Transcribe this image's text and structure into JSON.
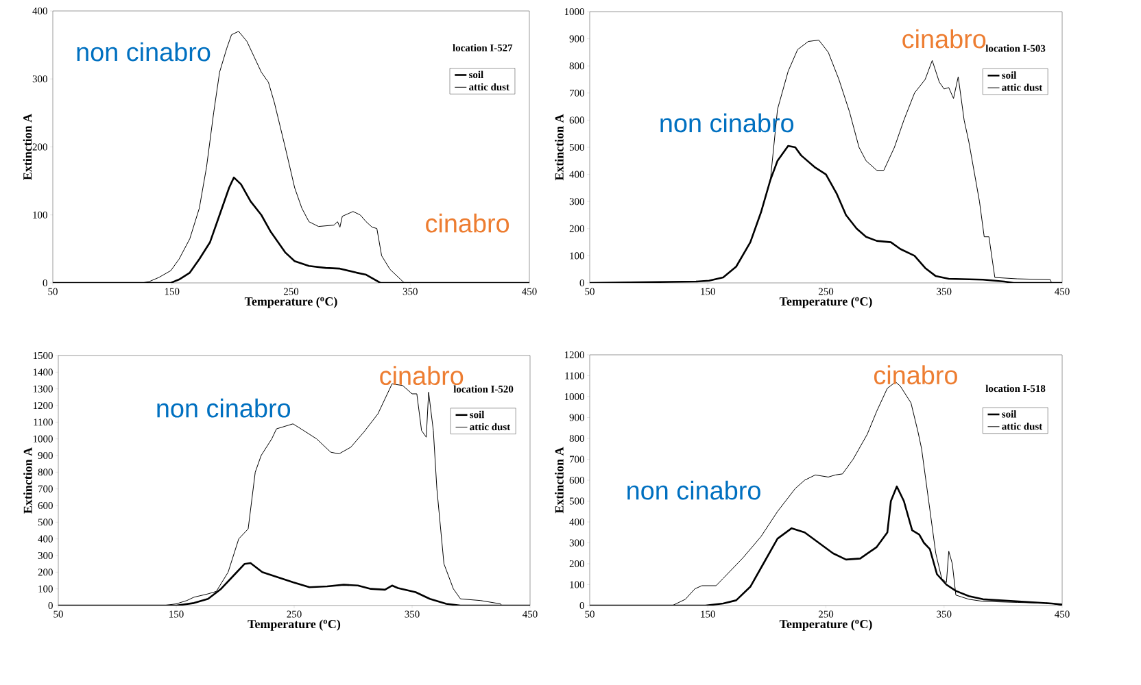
{
  "chart_data": [
    {
      "type": "line",
      "title": "location I-527",
      "xlabel": "Temperature ($^{o}$C)",
      "ylabel": "Extinction A",
      "xlim": [
        50,
        450
      ],
      "xticks": [
        50,
        150,
        250,
        350,
        450
      ],
      "ylim": [
        0,
        400
      ],
      "yticks": [
        0,
        100,
        200,
        300,
        400
      ],
      "legend": "top right",
      "series": [
        {
          "name": "soil",
          "color": "#000000",
          "x": [
            50,
            149,
            156,
            165,
            173,
            182,
            190,
            198,
            202,
            208,
            216,
            225,
            233,
            245,
            253,
            265,
            279,
            291,
            305,
            313,
            325,
            450
          ],
          "values": [
            0,
            0,
            5,
            15,
            35,
            60,
            100,
            140,
            155,
            145,
            120,
            100,
            75,
            45,
            32,
            25,
            22,
            21,
            15,
            12,
            0,
            0
          ]
        },
        {
          "name": "attic dust",
          "color": "#000000",
          "x": [
            50,
            125,
            131,
            139,
            149,
            156,
            165,
            173,
            179,
            185,
            190,
            196,
            200,
            206,
            213,
            225,
            231,
            236,
            245,
            253,
            259,
            265,
            273,
            286,
            289,
            291,
            293,
            302,
            308,
            313,
            318,
            322,
            326,
            333,
            345,
            450
          ],
          "values": [
            0,
            0,
            2,
            8,
            18,
            35,
            65,
            110,
            170,
            250,
            310,
            345,
            365,
            370,
            355,
            310,
            295,
            265,
            200,
            140,
            110,
            90,
            83,
            85,
            90,
            82,
            98,
            105,
            100,
            90,
            82,
            80,
            40,
            20,
            0,
            0
          ]
        }
      ],
      "annotations": [
        "non cinabro",
        "cinabro"
      ]
    },
    {
      "type": "line",
      "title": "location I-503",
      "xlabel": "Temperature ($^{o}$C)",
      "ylabel": "Extinction A",
      "xlim": [
        50,
        450
      ],
      "xticks": [
        50,
        150,
        250,
        350,
        450
      ],
      "ylim": [
        0,
        1000
      ],
      "yticks": [
        0,
        100,
        200,
        300,
        400,
        500,
        600,
        700,
        800,
        900,
        1000
      ],
      "legend": "top right",
      "series": [
        {
          "name": "soil",
          "color": "#000000",
          "x": [
            50,
            140,
            151,
            163,
            174,
            186,
            195,
            203,
            209,
            218,
            224,
            229,
            241,
            250,
            259,
            267,
            276,
            284,
            293,
            305,
            313,
            325,
            334,
            343,
            354,
            383,
            401,
            409,
            450
          ],
          "values": [
            0,
            5,
            8,
            20,
            60,
            150,
            260,
            380,
            450,
            505,
            500,
            470,
            425,
            400,
            330,
            250,
            200,
            170,
            155,
            150,
            125,
            100,
            55,
            25,
            15,
            12,
            5,
            0,
            0
          ]
        },
        {
          "name": "attic dust",
          "color": "#000000",
          "x": [
            50,
            140,
            151,
            163,
            174,
            186,
            195,
            203,
            209,
            218,
            226,
            235,
            244,
            252,
            261,
            270,
            278,
            284,
            293,
            299,
            308,
            316,
            325,
            334,
            340,
            346,
            350,
            354,
            358,
            362,
            367,
            371,
            380,
            384,
            388,
            393,
            412,
            440,
            441,
            450
          ],
          "values": [
            0,
            5,
            8,
            20,
            60,
            150,
            260,
            380,
            640,
            780,
            860,
            890,
            895,
            850,
            750,
            630,
            500,
            450,
            415,
            415,
            500,
            600,
            700,
            750,
            820,
            740,
            715,
            720,
            680,
            760,
            600,
            520,
            300,
            170,
            170,
            20,
            15,
            12,
            0,
            0
          ]
        }
      ],
      "annotations": [
        "non cinabro",
        "cinabro"
      ]
    },
    {
      "type": "line",
      "title": "location I-520",
      "xlabel": "Temperature ($^{o}$C)",
      "ylabel": "Extinction A",
      "xlim": [
        50,
        450
      ],
      "xticks": [
        50,
        150,
        250,
        350,
        450
      ],
      "ylim": [
        0,
        1500
      ],
      "yticks": [
        0,
        100,
        200,
        300,
        400,
        500,
        600,
        700,
        800,
        900,
        1000,
        1100,
        1200,
        1300,
        1400,
        1500
      ],
      "legend": "top right",
      "series": [
        {
          "name": "soil",
          "color": "#000000",
          "x": [
            50,
            150,
            165,
            177,
            188,
            200,
            208,
            213,
            223,
            234,
            249,
            263,
            278,
            292,
            304,
            315,
            327,
            333,
            338,
            353,
            365,
            379,
            391,
            450
          ],
          "values": [
            0,
            0,
            15,
            40,
            100,
            190,
            250,
            255,
            200,
            175,
            140,
            110,
            115,
            125,
            120,
            100,
            95,
            120,
            105,
            80,
            40,
            10,
            0,
            0
          ]
        },
        {
          "name": "attic dust",
          "color": "#000000",
          "x": [
            50,
            139,
            150,
            159,
            165,
            177,
            184,
            194,
            203,
            211,
            217,
            222,
            231,
            235,
            249,
            258,
            269,
            281,
            288,
            298,
            309,
            321,
            333,
            342,
            350,
            354,
            358,
            362,
            364,
            368,
            371,
            377,
            385,
            391,
            408,
            425,
            426,
            450
          ],
          "values": [
            0,
            0,
            10,
            30,
            50,
            70,
            85,
            200,
            400,
            460,
            800,
            900,
            1000,
            1060,
            1090,
            1050,
            1000,
            920,
            910,
            950,
            1040,
            1150,
            1330,
            1320,
            1270,
            1270,
            1050,
            1010,
            1280,
            1050,
            700,
            250,
            100,
            40,
            30,
            10,
            0,
            0
          ]
        }
      ],
      "annotations": [
        "non cinabro",
        "cinabro"
      ]
    },
    {
      "type": "line",
      "title": "location I-518",
      "xlabel": "Temperature ($^{o}$C)",
      "ylabel": "Extinction A",
      "xlim": [
        50,
        450
      ],
      "xticks": [
        50,
        150,
        250,
        350,
        450
      ],
      "ylim": [
        0,
        1200
      ],
      "yticks": [
        0,
        100,
        200,
        300,
        400,
        500,
        600,
        700,
        800,
        900,
        1000,
        1100,
        1200
      ],
      "legend": "top right",
      "series": [
        {
          "name": "soil",
          "color": "#000000",
          "x": [
            50,
            148,
            163,
            174,
            186,
            197,
            209,
            221,
            232,
            244,
            256,
            267,
            279,
            293,
            302,
            305,
            310,
            316,
            323,
            329,
            333,
            338,
            344,
            352,
            360,
            371,
            383,
            412,
            441,
            450
          ],
          "values": [
            0,
            0,
            10,
            25,
            90,
            200,
            320,
            370,
            350,
            300,
            250,
            220,
            225,
            280,
            350,
            500,
            570,
            500,
            360,
            340,
            300,
            270,
            150,
            100,
            70,
            45,
            30,
            20,
            10,
            5
          ]
        },
        {
          "name": "attic dust",
          "color": "#000000",
          "x": [
            50,
            120,
            131,
            139,
            145,
            157,
            163,
            180,
            195,
            209,
            224,
            232,
            241,
            252,
            258,
            264,
            273,
            285,
            293,
            302,
            309,
            313,
            322,
            328,
            331,
            337,
            343,
            348,
            352,
            354,
            357,
            360,
            371,
            383,
            412,
            441,
            450
          ],
          "values": [
            0,
            0,
            30,
            80,
            95,
            95,
            130,
            230,
            330,
            450,
            560,
            600,
            625,
            615,
            625,
            630,
            700,
            820,
            930,
            1040,
            1070,
            1050,
            970,
            830,
            750,
            500,
            250,
            130,
            110,
            260,
            200,
            50,
            30,
            20,
            15,
            10,
            0
          ]
        }
      ],
      "annotations": [
        "non cinabro",
        "cinabro"
      ]
    }
  ]
}
